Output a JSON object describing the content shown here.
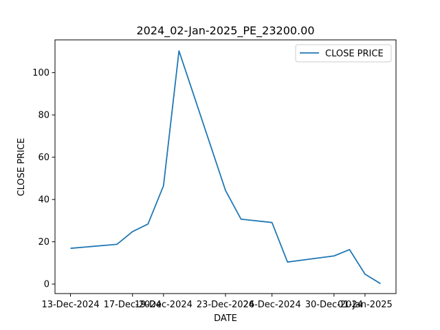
{
  "chart_data": {
    "type": "line",
    "title": "2024_02-Jan-2025_PE_23200.00",
    "xlabel": "DATE",
    "ylabel": "CLOSE PRICE",
    "x": [
      "2024-12-13",
      "2024-12-16",
      "2024-12-17",
      "2024-12-18",
      "2024-12-19",
      "2024-12-20",
      "2024-12-23",
      "2024-12-24",
      "2024-12-26",
      "2024-12-27",
      "2024-12-30",
      "2024-12-31",
      "2025-01-01",
      "2025-01-02"
    ],
    "x_ticks": [
      "2024-12-13",
      "2024-12-17",
      "2024-12-19",
      "2024-12-23",
      "2024-12-26",
      "2024-12-30",
      "2025-01-01"
    ],
    "x_tick_labels": [
      "13-Dec-2024",
      "17-Dec-2024",
      "19-Dec-2024",
      "23-Dec-2024",
      "26-Dec-2024",
      "30-Dec-2024",
      "01-Jan-2025"
    ],
    "y_ticks": [
      0,
      20,
      40,
      60,
      80,
      100
    ],
    "ylim": [
      -4.5,
      115.5
    ],
    "series": [
      {
        "name": "CLOSE PRICE",
        "color": "#1f77b4",
        "values": [
          16.9,
          18.8,
          24.8,
          28.4,
          46.5,
          110.3,
          44.3,
          30.7,
          29.1,
          10.4,
          13.3,
          16.3,
          4.7,
          0.2
        ]
      }
    ],
    "legend": {
      "position": "top-right"
    },
    "grid": false
  }
}
